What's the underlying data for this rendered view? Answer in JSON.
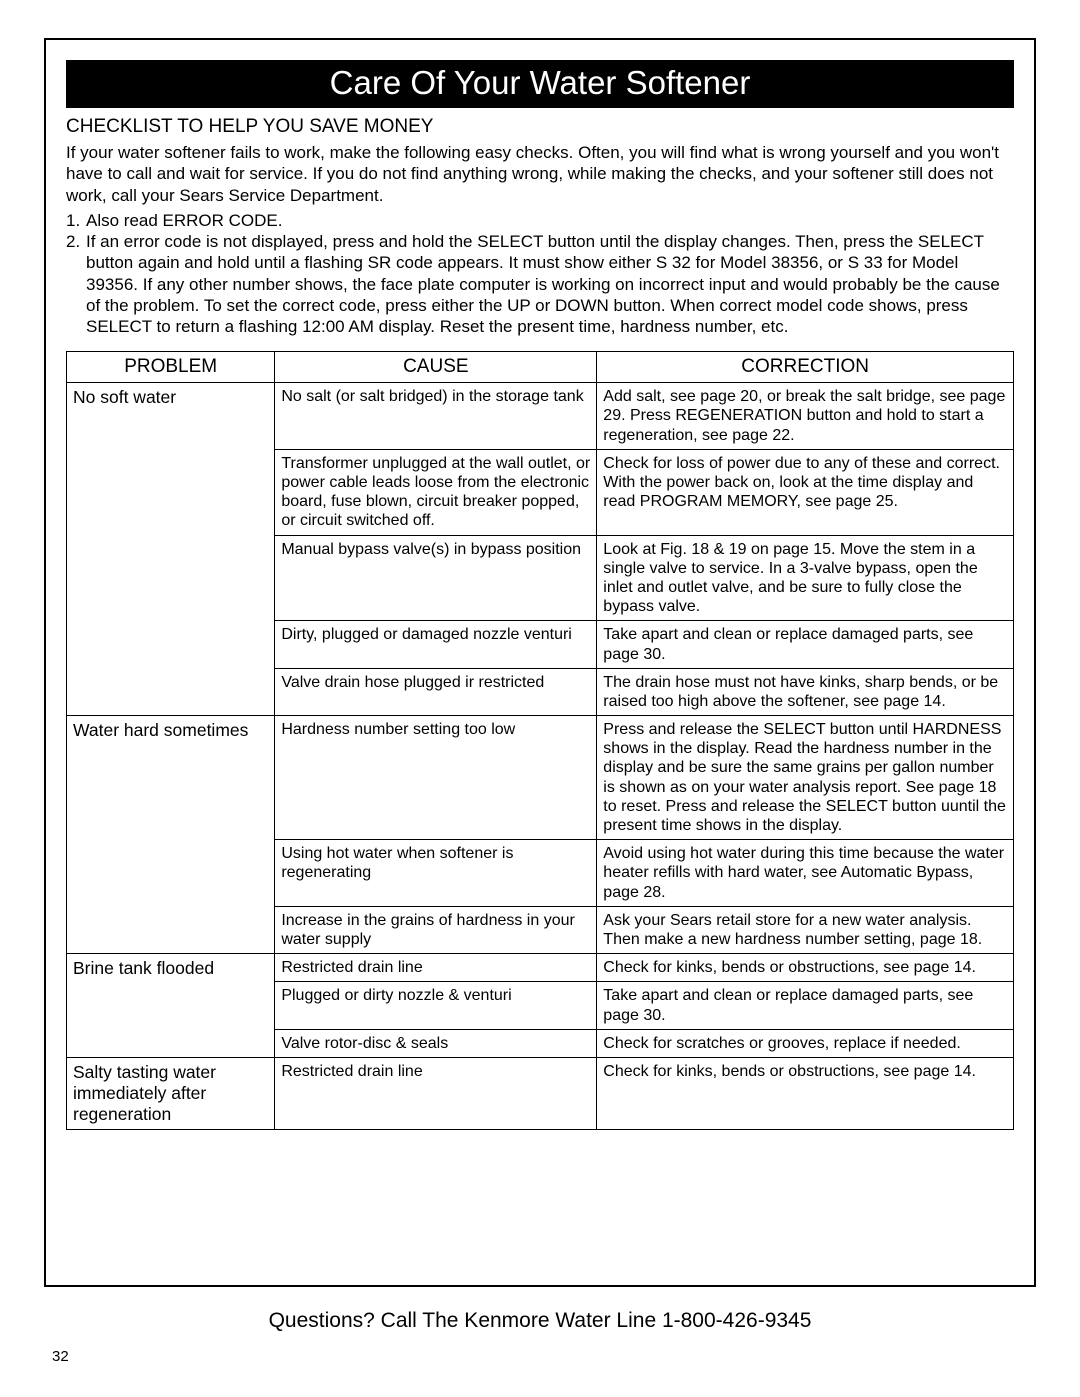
{
  "colors": {
    "page_bg": "#ffffff",
    "text": "#000000",
    "title_bg": "#000000",
    "title_fg": "#ffffff",
    "border": "#000000"
  },
  "title": "Care Of Your Water Softener",
  "subtitle": "CHECKLIST TO HELP YOU SAVE MONEY",
  "intro": "If your water softener fails to work, make the following easy checks. Often, you will find what is wrong yourself and you won't have to call and wait for service. If you do not find anything wrong, while making the checks, and your softener still does not work, call your Sears Service Department.",
  "steps": [
    {
      "n": "1.",
      "t": "Also read ERROR CODE."
    },
    {
      "n": "2.",
      "t": "If an error code is not displayed, press and hold the SELECT button until the display changes. Then, press the SELECT button again and hold until a flashing SR code appears. It must show either S 32 for Model 38356, or S 33 for Model 39356. If any other number shows, the face plate computer is working on incorrect input and would probably be the cause of the problem. To set the correct code,    press either the UP or DOWN button. When correct model code shows, press SELECT to return a flashing 12:00 AM display. Reset the present time, hardness number, etc."
    }
  ],
  "table": {
    "headers": [
      "PROBLEM",
      "CAUSE",
      "CORRECTION"
    ],
    "col_widths": [
      "22%",
      "34%",
      "44%"
    ],
    "groups": [
      {
        "problem": "No soft water",
        "rows": [
          {
            "cause": "No salt (or salt bridged) in the storage tank",
            "correction": "Add salt, see page 20, or break the salt bridge, see page 29. Press REGENERATION button and hold to start a regeneration, see page 22."
          },
          {
            "cause": "Transformer unplugged at the wall outlet, or power cable leads loose from the electronic board, fuse blown, circuit breaker popped, or circuit switched off.",
            "correction": "Check for loss of power due to any of these and correct. With the power back on, look at the time display and read PROGRAM MEMORY, see page 25."
          },
          {
            "cause": "Manual bypass valve(s) in bypass position",
            "correction": "Look at Fig. 18 & 19 on page 15. Move the stem in a single valve to service. In a 3-valve bypass, open the inlet and outlet valve, and be sure to fully close the bypass valve."
          },
          {
            "cause": "Dirty, plugged or damaged nozzle venturi",
            "correction": "Take apart and clean or replace damaged parts, see page 30."
          },
          {
            "cause": "Valve drain hose plugged ir restricted",
            "correction": "The drain hose must not have kinks, sharp bends, or be raised too high above the softener, see page 14."
          }
        ]
      },
      {
        "problem": "Water hard sometimes",
        "rows": [
          {
            "cause": "Hardness number setting too low",
            "correction": "Press and release the SELECT button until HARDNESS shows in the display. Read the hardness number in the display and be sure the same grains per gallon number is shown as on your water analysis report. See page 18 to reset. Press and release the SELECT button uuntil the present time shows in the display."
          },
          {
            "cause": "Using hot water when softener is regenerating",
            "correction": "Avoid using hot water during this time because the water heater refills with hard water, see Automatic Bypass, page 28."
          },
          {
            "cause": "Increase in the grains of hardness in your water supply",
            "correction": "Ask your Sears retail store for a new water analysis. Then make a new hardness number setting, page 18."
          }
        ]
      },
      {
        "problem": "Brine tank flooded",
        "rows": [
          {
            "cause": "Restricted drain line",
            "correction": "Check for kinks, bends or obstructions, see page 14."
          },
          {
            "cause": "Plugged or dirty nozzle & venturi",
            "correction": "Take apart and clean or replace damaged parts, see page 30."
          },
          {
            "cause": "Valve rotor-disc & seals",
            "correction": "Check for scratches or grooves, replace if needed."
          }
        ]
      },
      {
        "problem": "Salty tasting water immediately after regeneration",
        "rows": [
          {
            "cause": "Restricted drain line",
            "correction": "Check for kinks, bends or obstructions, see page 14."
          }
        ]
      }
    ]
  },
  "footer": "Questions? Call The Kenmore Water Line 1-800-426-9345",
  "page_number": "32"
}
